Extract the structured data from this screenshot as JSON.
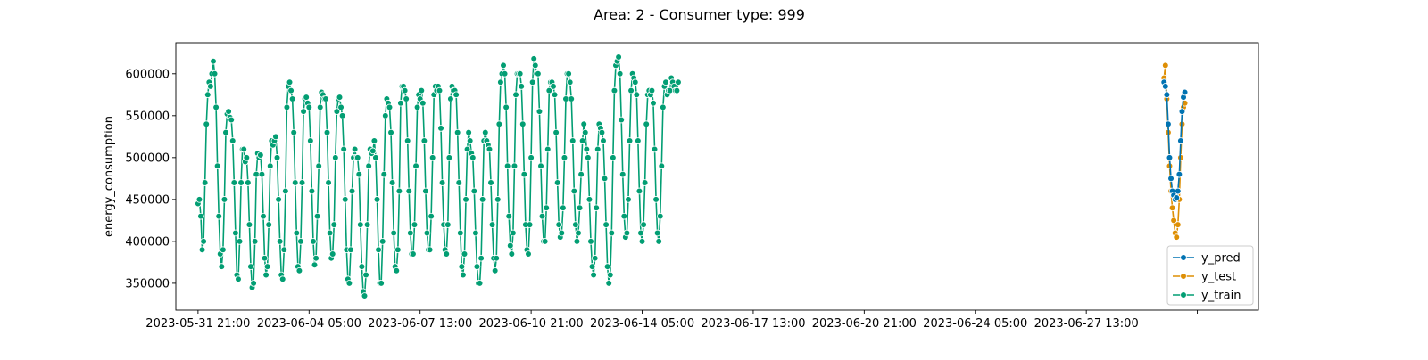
{
  "chart_data": {
    "type": "line",
    "title": "Area: 2 - Consumer type: 999",
    "xlabel": "",
    "ylabel": "energy_consumption",
    "ylim": [
      318000,
      637000
    ],
    "xlim": [
      -16,
      764
    ],
    "x_ticks": [
      {
        "label": "2023-05-31 21:00",
        "hours": 0
      },
      {
        "label": "2023-06-04 05:00",
        "hours": 80
      },
      {
        "label": "2023-06-07 13:00",
        "hours": 160
      },
      {
        "label": "2023-06-10 21:00",
        "hours": 240
      },
      {
        "label": "2023-06-14 05:00",
        "hours": 320
      },
      {
        "label": "2023-06-17 13:00",
        "hours": 400
      },
      {
        "label": "2023-06-20 21:00",
        "hours": 480
      },
      {
        "label": "2023-06-24 05:00",
        "hours": 560
      },
      {
        "label": "2023-06-27 13:00",
        "hours": 640
      },
      {
        "label": "",
        "hours": 720
      }
    ],
    "y_ticks": [
      350000,
      400000,
      450000,
      500000,
      550000,
      600000
    ],
    "y_tick_labels": [
      "350000",
      "400000",
      "450000",
      "500000",
      "550000",
      "600000"
    ],
    "legend_position": "lower right",
    "series": [
      {
        "name": "y_train",
        "color": "#029e73",
        "x_start_hours": 0,
        "values": [
          445000,
          450000,
          430000,
          390000,
          400000,
          470000,
          540000,
          575000,
          590000,
          585000,
          600000,
          615000,
          600000,
          560000,
          490000,
          430000,
          385000,
          370000,
          390000,
          450000,
          530000,
          552000,
          555000,
          548000,
          545000,
          520000,
          470000,
          410000,
          360000,
          355000,
          400000,
          470000,
          510000,
          510000,
          495000,
          500000,
          470000,
          420000,
          370000,
          345000,
          350000,
          400000,
          480000,
          505000,
          500000,
          503000,
          480000,
          430000,
          380000,
          360000,
          370000,
          420000,
          490000,
          520000,
          515000,
          520000,
          525000,
          500000,
          450000,
          400000,
          360000,
          355000,
          390000,
          460000,
          560000,
          585000,
          590000,
          580000,
          570000,
          530000,
          470000,
          410000,
          370000,
          365000,
          400000,
          470000,
          555000,
          570000,
          572000,
          565000,
          560000,
          520000,
          460000,
          400000,
          372000,
          380000,
          430000,
          490000,
          560000,
          578000,
          575000,
          570000,
          570000,
          530000,
          470000,
          410000,
          380000,
          385000,
          420000,
          500000,
          555000,
          570000,
          572000,
          560000,
          550000,
          510000,
          450000,
          390000,
          355000,
          350000,
          390000,
          460000,
          500000,
          510000,
          500000,
          500000,
          480000,
          420000,
          370000,
          340000,
          335000,
          360000,
          420000,
          490000,
          510000,
          505000,
          508000,
          520000,
          500000,
          450000,
          390000,
          350000,
          350000,
          400000,
          480000,
          550000,
          570000,
          565000,
          560000,
          530000,
          470000,
          410000,
          370000,
          365000,
          390000,
          460000,
          565000,
          585000,
          585000,
          580000,
          570000,
          520000,
          460000,
          410000,
          385000,
          385000,
          420000,
          490000,
          560000,
          575000,
          570000,
          580000,
          565000,
          520000,
          460000,
          410000,
          390000,
          390000,
          430000,
          500000,
          575000,
          585000,
          580000,
          585000,
          580000,
          535000,
          470000,
          420000,
          390000,
          385000,
          420000,
          500000,
          570000,
          585000,
          580000,
          580000,
          575000,
          530000,
          470000,
          410000,
          370000,
          360000,
          385000,
          450000,
          510000,
          530000,
          520000,
          505000,
          500000,
          460000,
          410000,
          370000,
          350000,
          350000,
          380000,
          450000,
          520000,
          530000,
          520000,
          515000,
          510000,
          470000,
          420000,
          380000,
          365000,
          380000,
          450000,
          540000,
          590000,
          600000,
          610000,
          600000,
          560000,
          490000,
          430000,
          395000,
          385000,
          410000,
          490000,
          575000,
          600000,
          600000,
          600000,
          585000,
          540000,
          480000,
          420000,
          390000,
          385000,
          420000,
          500000,
          590000,
          618000,
          610000,
          600000,
          600000,
          555000,
          490000,
          430000,
          400000,
          400000,
          440000,
          510000,
          580000,
          590000,
          590000,
          585000,
          575000,
          530000,
          470000,
          420000,
          405000,
          410000,
          440000,
          500000,
          570000,
          600000,
          600000,
          590000,
          570000,
          520000,
          460000,
          420000,
          400000,
          410000,
          440000,
          480000,
          520000,
          540000,
          530000,
          510000,
          500000,
          450000,
          400000,
          370000,
          360000,
          380000,
          440000,
          510000,
          540000,
          535000,
          530000,
          520000,
          475000,
          420000,
          370000,
          350000,
          360000,
          410000,
          500000,
          580000,
          610000,
          615000,
          620000,
          600000,
          545000,
          480000,
          430000,
          405000,
          410000,
          450000,
          520000,
          580000,
          600000,
          595000,
          590000,
          575000,
          520000,
          460000,
          410000,
          400000,
          420000,
          470000,
          540000,
          575000,
          580000,
          575000,
          580000,
          565000,
          510000,
          450000,
          410000,
          400000,
          430000,
          490000,
          560000,
          585000,
          590000,
          575000,
          580000,
          580000,
          595000,
          590000,
          585000,
          580000,
          580000,
          590000
        ]
      },
      {
        "name": "y_test",
        "color": "#de8f05",
        "x_start_hours": 696,
        "values": [
          595000,
          610000,
          570000,
          530000,
          490000,
          460000,
          440000,
          425000,
          410000,
          405000,
          420000,
          450000,
          500000,
          540000,
          560000,
          565000
        ]
      },
      {
        "name": "y_pred",
        "color": "#0173b2",
        "x_start_hours": 696,
        "values": [
          590000,
          585000,
          575000,
          540000,
          500000,
          475000,
          460000,
          455000,
          450000,
          452000,
          460000,
          480000,
          520000,
          555000,
          572000,
          578000
        ]
      }
    ]
  }
}
